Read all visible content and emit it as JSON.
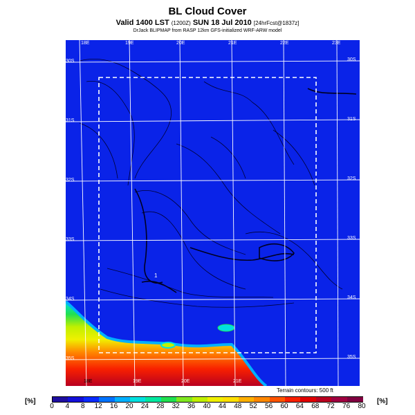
{
  "header": {
    "title": "BL Cloud Cover",
    "valid_line": "Valid 1400 LST",
    "valid_small": "(1200Z)",
    "date_text": "SUN 18 Jul 2010",
    "forecast_small": "[24hrFcst@1837z]",
    "credit": "DrJack BLIPMAP from RASP 12km GFS-initialized WRF-ARW model"
  },
  "map": {
    "lon_labels_top": [
      "18E",
      "19E",
      "20E",
      "21E",
      "22E",
      "23E"
    ],
    "lon_labels_bottom": [
      "18E",
      "19E",
      "20E",
      "21E"
    ],
    "lat_labels_left": [
      "30S",
      "31S",
      "32S",
      "33S",
      "34S",
      "35S"
    ],
    "lat_labels_right": [
      "30S",
      "31S",
      "32S",
      "33S",
      "34S",
      "35S"
    ],
    "point_marker": "1",
    "terrain_note": "Terrain contours: 500 ft",
    "colors": {
      "background": "#0a23e8",
      "grid": "#ffffff",
      "contour": "#000033",
      "box": "#ffffff"
    }
  },
  "colorbar": {
    "unit_left": "[%]",
    "unit_right": "[%]",
    "ticks": [
      "0",
      "4",
      "8",
      "12",
      "16",
      "20",
      "24",
      "28",
      "32",
      "36",
      "40",
      "44",
      "48",
      "52",
      "56",
      "60",
      "64",
      "68",
      "72",
      "76",
      "80"
    ],
    "colors": [
      "#1e0ea0",
      "#1410d8",
      "#0a2bff",
      "#0073ff",
      "#00b0ff",
      "#00e0e0",
      "#00e8a0",
      "#20e050",
      "#80e820",
      "#c0f000",
      "#f0f000",
      "#ffe000",
      "#ffb000",
      "#ff8800",
      "#ff5500",
      "#f82000",
      "#e00000",
      "#b80020",
      "#a00040",
      "#800040"
    ]
  }
}
